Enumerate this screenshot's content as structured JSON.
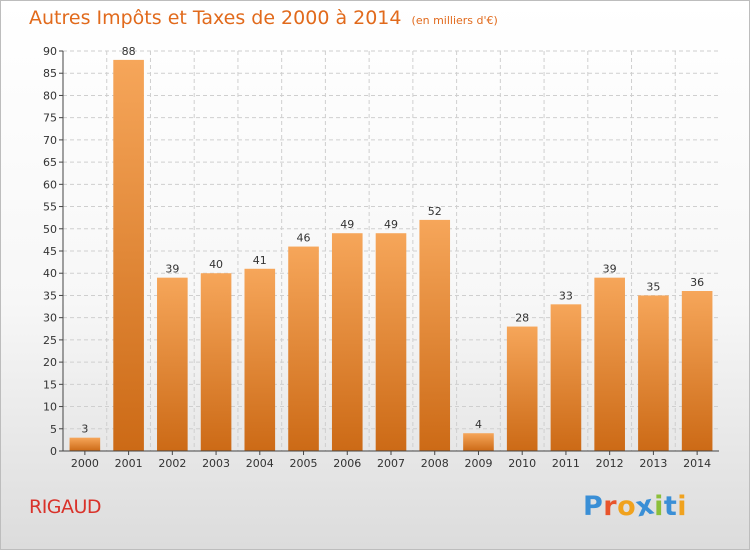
{
  "title": {
    "main": "Autres Impôts et Taxes de 2000 à 2014",
    "unit": "(en milliers d'€)"
  },
  "place": "RIGAUD",
  "logo": {
    "text": "Proxiti",
    "letter_colors": [
      "#3a8fd6",
      "#e8542c",
      "#f0a21e",
      "#3a8fd6",
      "#8cbf3a",
      "#3a8fd6",
      "#f0a21e"
    ]
  },
  "colors": {
    "bar_top": "#f6a65a",
    "bar_bottom": "#cc6a16",
    "grid": "#cfcfcf",
    "axis": "#444444",
    "title": "#e16a1c",
    "place": "#d9322a"
  },
  "chart_data": {
    "type": "bar",
    "title": "Autres Impôts et Taxes de 2000 à 2014",
    "subtitle": "(en milliers d'€)",
    "xlabel": "",
    "ylabel": "",
    "categories": [
      "2000",
      "2001",
      "2002",
      "2003",
      "2004",
      "2005",
      "2006",
      "2007",
      "2008",
      "2009",
      "2010",
      "2011",
      "2012",
      "2013",
      "2014"
    ],
    "values": [
      3,
      88,
      39,
      40,
      41,
      46,
      49,
      49,
      52,
      4,
      28,
      33,
      39,
      35,
      36
    ],
    "data_labels": [
      "3",
      "88",
      "39",
      "40",
      "41",
      "46",
      "49",
      "49",
      "52",
      "4",
      "28",
      "33",
      "39",
      "35",
      "36"
    ],
    "ylim": [
      0,
      90
    ],
    "yticks": [
      0,
      5,
      10,
      15,
      20,
      25,
      30,
      35,
      40,
      45,
      50,
      55,
      60,
      65,
      70,
      75,
      80,
      85,
      90
    ],
    "grid": true,
    "legend": "none"
  }
}
